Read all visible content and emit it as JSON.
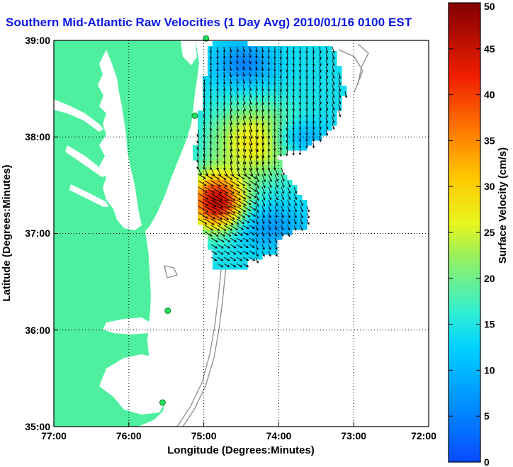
{
  "title": "Southern Mid-Atlantic Raw Velocities (1 Day Avg) 2010/01/16 0100 EST",
  "xlabel": "Longitude (Degrees:Minutes)",
  "ylabel": "Latitude (Degrees:Minutes)",
  "x_ticks": [
    "77:00",
    "76:00",
    "75:00",
    "74:00",
    "73:00",
    "72:00"
  ],
  "y_ticks": [
    "39:00",
    "38:00",
    "37:00",
    "36:00",
    "35:00"
  ],
  "colorbar": {
    "label": "Surface Velocity (cm/s)",
    "ticks": [
      "0",
      "5",
      "10",
      "15",
      "20",
      "25",
      "30",
      "35",
      "40",
      "45",
      "50"
    ],
    "range": [
      0,
      50
    ]
  },
  "colors": {
    "land": "#4ef0a0",
    "water": "#ffffff",
    "title": "#0a16e6",
    "bathymetry": "#8c8c8c"
  },
  "map": {
    "lon_range": [
      -77,
      -72
    ],
    "lat_range": [
      35,
      39
    ],
    "grid": "dotted",
    "radar_sites": [
      [
        -74.97,
        39.02
      ],
      [
        -75.12,
        38.22
      ],
      [
        -75.48,
        36.2
      ],
      [
        -75.55,
        35.25
      ]
    ]
  }
}
